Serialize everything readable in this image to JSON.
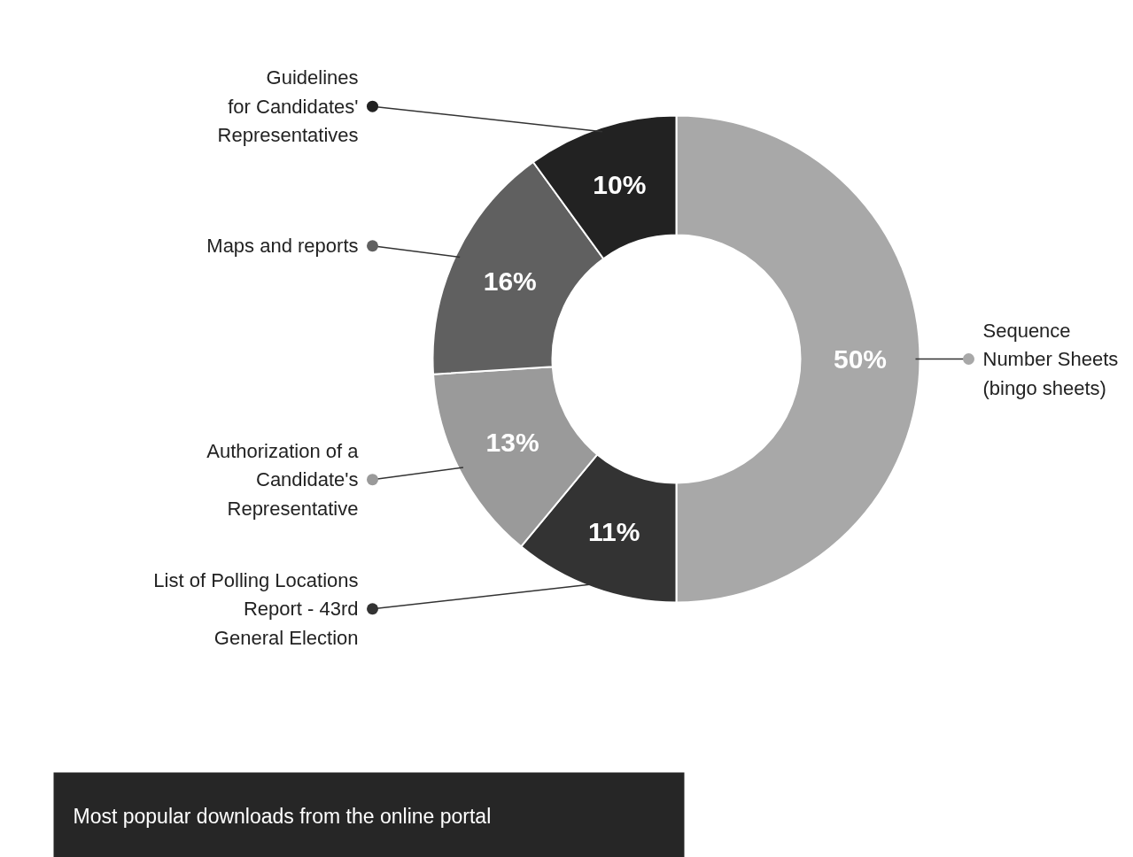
{
  "chart_data": {
    "type": "donut",
    "title": "Most popular downloads from the online portal",
    "categories": [
      "Sequence\nNumber Sheets\n(bingo sheets)",
      "List of Polling Locations\nReport - 43rd\nGeneral Election",
      "Authorization of a\nCandidate's\nRepresentative",
      "Maps and reports",
      "Guidelines\nfor Candidates'\nRepresentatives"
    ],
    "values": [
      50,
      11,
      13,
      16,
      10
    ],
    "colors": [
      "#a8a8a8",
      "#333333",
      "#9a9a9a",
      "#606060",
      "#222222"
    ],
    "value_labels": [
      "50%",
      "11%",
      "13%",
      "16%",
      "10%"
    ],
    "legend": "left"
  }
}
